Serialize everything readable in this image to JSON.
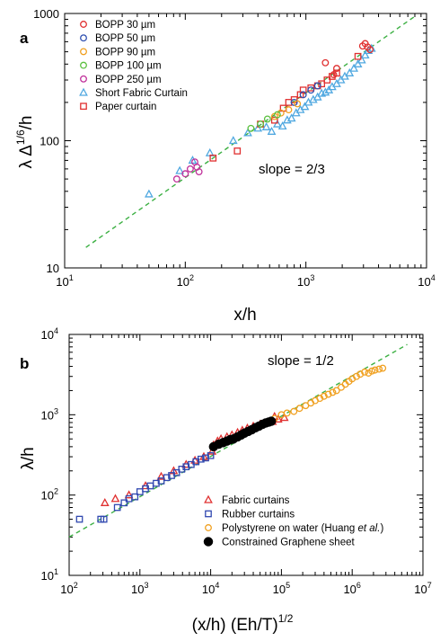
{
  "chart_data": [
    {
      "panel": "a",
      "type": "scatter",
      "xlabel": "x/h",
      "ylabel_main": "λ Δ",
      "ylabel_sup": "1/6",
      "ylabel_tail": "/h",
      "log_x": true,
      "log_y": true,
      "xlim": [
        10,
        10000
      ],
      "ylim": [
        10,
        1000
      ],
      "xticks": [
        {
          "value": 10,
          "base": "10",
          "exp": "1"
        },
        {
          "value": 100,
          "base": "10",
          "exp": "2"
        },
        {
          "value": 1000,
          "base": "10",
          "exp": "3"
        },
        {
          "value": 10000,
          "base": "10",
          "exp": "4"
        }
      ],
      "yticks": [
        {
          "value": 10,
          "label": "10"
        },
        {
          "value": 100,
          "label": "100"
        },
        {
          "value": 1000,
          "label": "1000"
        }
      ],
      "annotation": "slope = 2/3",
      "legend_position": "top-left",
      "fit_line": {
        "color": "#3cb043",
        "points": [
          [
            15,
            14.5
          ],
          [
            8000,
            950
          ]
        ]
      },
      "series": [
        {
          "name": "BOPP 30 µm",
          "marker": "circle",
          "color": "#e03030",
          "points": [
            [
              1450,
              410
            ],
            [
              1700,
              330
            ],
            [
              1800,
              370
            ],
            [
              2950,
              555
            ],
            [
              3100,
              580
            ],
            [
              3250,
              545
            ],
            [
              3400,
              520
            ]
          ]
        },
        {
          "name": "BOPP 50 µm",
          "marker": "circle",
          "color": "#3050b0",
          "points": [
            [
              800,
              200
            ],
            [
              950,
              230
            ],
            [
              1100,
              250
            ],
            [
              1250,
              270
            ]
          ]
        },
        {
          "name": "BOPP 90 µm",
          "marker": "circle",
          "color": "#f0a020",
          "points": [
            [
              550,
              155
            ],
            [
              620,
              165
            ],
            [
              720,
              175
            ],
            [
              850,
              195
            ]
          ]
        },
        {
          "name": "BOPP 100 µm",
          "marker": "circle",
          "color": "#5cc040",
          "points": [
            [
              350,
              125
            ],
            [
              420,
              135
            ],
            [
              480,
              148
            ],
            [
              580,
              160
            ]
          ]
        },
        {
          "name": "BOPP 250 µm",
          "marker": "circle",
          "color": "#c0309a",
          "points": [
            [
              85,
              50
            ],
            [
              100,
              55
            ],
            [
              110,
              60
            ],
            [
              120,
              68
            ],
            [
              125,
              62
            ],
            [
              130,
              57
            ]
          ]
        }
      ],
      "series_b": [
        {
          "name": "Short Fabric Curtain",
          "marker": "triangle",
          "color": "#50a8e0",
          "points": [
            [
              50,
              38
            ],
            [
              90,
              58
            ],
            [
              115,
              70
            ],
            [
              160,
              80
            ],
            [
              250,
              100
            ],
            [
              330,
              115
            ],
            [
              400,
              125
            ],
            [
              470,
              128
            ],
            [
              520,
              118
            ],
            [
              580,
              135
            ],
            [
              640,
              130
            ],
            [
              700,
              145
            ],
            [
              760,
              150
            ],
            [
              830,
              165
            ],
            [
              900,
              175
            ],
            [
              980,
              185
            ],
            [
              1050,
              200
            ],
            [
              1150,
              210
            ],
            [
              1250,
              220
            ],
            [
              1350,
              235
            ],
            [
              1450,
              240
            ],
            [
              1550,
              250
            ],
            [
              1650,
              265
            ],
            [
              1800,
              280
            ],
            [
              1950,
              300
            ],
            [
              2100,
              320
            ],
            [
              2300,
              340
            ],
            [
              2500,
              370
            ],
            [
              2700,
              400
            ],
            [
              2900,
              430
            ],
            [
              3100,
              470
            ],
            [
              3300,
              510
            ],
            [
              3500,
              530
            ]
          ]
        },
        {
          "name": "Paper curtain",
          "marker": "square",
          "color": "#e03030",
          "points": [
            [
              170,
              73
            ],
            [
              270,
              83
            ],
            [
              420,
              135
            ],
            [
              550,
              145
            ],
            [
              650,
              180
            ],
            [
              720,
              200
            ],
            [
              800,
              210
            ],
            [
              900,
              230
            ],
            [
              950,
              250
            ],
            [
              1100,
              260
            ],
            [
              1250,
              270
            ],
            [
              1350,
              280
            ],
            [
              1500,
              300
            ],
            [
              1650,
              320
            ],
            [
              1800,
              340
            ],
            [
              2700,
              460
            ]
          ]
        }
      ]
    },
    {
      "panel": "b",
      "type": "scatter",
      "xlabel_main": "(x/h) (Eh/T)",
      "xlabel_sup": "1/2",
      "ylabel": "λ/h",
      "log_x": true,
      "log_y": true,
      "xlim": [
        100,
        10000000
      ],
      "ylim": [
        10,
        10000
      ],
      "xticks": [
        {
          "value": 100,
          "base": "10",
          "exp": "2"
        },
        {
          "value": 1000,
          "base": "10",
          "exp": "3"
        },
        {
          "value": 10000,
          "base": "10",
          "exp": "4"
        },
        {
          "value": 100000,
          "base": "10",
          "exp": "5"
        },
        {
          "value": 1000000,
          "base": "10",
          "exp": "6"
        },
        {
          "value": 10000000,
          "base": "10",
          "exp": "7"
        }
      ],
      "yticks": [
        {
          "value": 10,
          "base": "10",
          "exp": "1"
        },
        {
          "value": 100,
          "base": "10",
          "exp": "2"
        },
        {
          "value": 1000,
          "base": "10",
          "exp": "3"
        },
        {
          "value": 10000,
          "base": "10",
          "exp": "4"
        }
      ],
      "annotation": "slope = 1/2",
      "legend_position": "bottom-right",
      "fit_line": {
        "color": "#3cb043",
        "points": [
          [
            100,
            30
          ],
          [
            6000000,
            7500
          ]
        ]
      },
      "series": [
        {
          "name": "Fabric curtains",
          "marker": "triangle",
          "color": "#e03030",
          "points": [
            [
              320,
              80
            ],
            [
              450,
              90
            ],
            [
              700,
              100
            ],
            [
              1200,
              130
            ],
            [
              2000,
              170
            ],
            [
              3000,
              200
            ],
            [
              4500,
              240
            ],
            [
              6000,
              270
            ],
            [
              8000,
              300
            ],
            [
              10500,
              350
            ],
            [
              11000,
              420
            ],
            [
              12500,
              470
            ],
            [
              14000,
              500
            ],
            [
              17000,
              530
            ],
            [
              20000,
              560
            ],
            [
              24000,
              600
            ],
            [
              28000,
              640
            ],
            [
              33000,
              680
            ],
            [
              40000,
              720
            ],
            [
              50000,
              760
            ],
            [
              62000,
              790
            ],
            [
              75000,
              820
            ],
            [
              90000,
              880
            ],
            [
              110000,
              920
            ],
            [
              80000,
              950
            ]
          ]
        },
        {
          "name": "Rubber curtains",
          "marker": "square",
          "color": "#3048b0",
          "points": [
            [
              140,
              50
            ],
            [
              280,
              50
            ],
            [
              310,
              50
            ],
            [
              480,
              70
            ],
            [
              600,
              80
            ],
            [
              700,
              90
            ],
            [
              850,
              95
            ],
            [
              1000,
              110
            ],
            [
              1200,
              120
            ],
            [
              1400,
              130
            ],
            [
              1700,
              140
            ],
            [
              2000,
              150
            ],
            [
              2400,
              165
            ],
            [
              2800,
              175
            ],
            [
              3300,
              190
            ],
            [
              3900,
              210
            ],
            [
              4500,
              225
            ],
            [
              5300,
              240
            ],
            [
              6200,
              260
            ],
            [
              7300,
              280
            ],
            [
              8500,
              290
            ],
            [
              10000,
              310
            ]
          ]
        },
        {
          "name": "Polystyrene on water",
          "name_suffix_a": "(Huang ",
          "name_suffix_italic": "et al.",
          "name_suffix_b": ")",
          "marker": "circle",
          "color": "#f0a020",
          "points": [
            [
              60000,
              800
            ],
            [
              80000,
              900
            ],
            [
              100000,
              1000
            ],
            [
              120000,
              1050
            ],
            [
              150000,
              1100
            ],
            [
              180000,
              1200
            ],
            [
              220000,
              1300
            ],
            [
              260000,
              1400
            ],
            [
              300000,
              1500
            ],
            [
              350000,
              1600
            ],
            [
              400000,
              1700
            ],
            [
              460000,
              1800
            ],
            [
              530000,
              1900
            ],
            [
              600000,
              2000
            ],
            [
              700000,
              2200
            ],
            [
              800000,
              2400
            ],
            [
              900000,
              2600
            ],
            [
              1000000,
              2800
            ],
            [
              1150000,
              3000
            ],
            [
              1300000,
              3200
            ],
            [
              1500000,
              3400
            ],
            [
              1700000,
              3300
            ],
            [
              1900000,
              3500
            ],
            [
              2100000,
              3600
            ],
            [
              2400000,
              3700
            ],
            [
              2700000,
              3800
            ]
          ]
        },
        {
          "name": "Constrained Graphene sheet",
          "marker": "dot",
          "color": "#000000",
          "points": [
            [
              11000,
              400
            ],
            [
              13000,
              430
            ],
            [
              15000,
              450
            ],
            [
              17000,
              470
            ],
            [
              19000,
              490
            ],
            [
              21000,
              500
            ],
            [
              24000,
              530
            ],
            [
              27000,
              560
            ],
            [
              30000,
              590
            ],
            [
              34000,
              620
            ],
            [
              38000,
              650
            ],
            [
              43000,
              690
            ],
            [
              48000,
              720
            ],
            [
              54000,
              760
            ],
            [
              60000,
              790
            ],
            [
              66000,
              810
            ],
            [
              72000,
              830
            ]
          ]
        }
      ]
    }
  ]
}
